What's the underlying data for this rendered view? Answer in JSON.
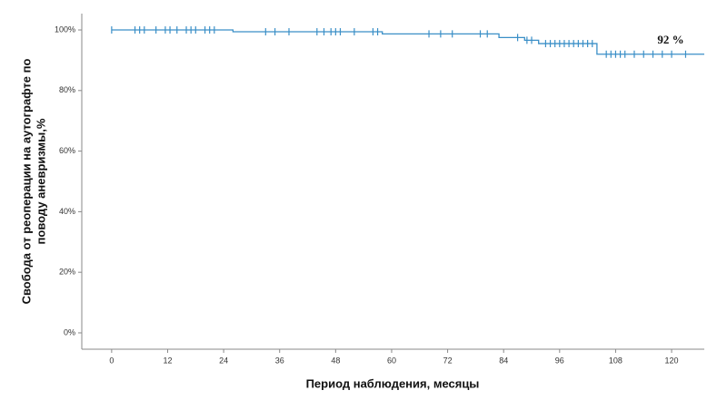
{
  "chart_data": {
    "type": "step",
    "xlabel": "Период наблюдения, месяцы",
    "ylabel": [
      "Свобода от реоперации на аутографте по",
      "поводу аневризмы,%"
    ],
    "annotation": "92 %",
    "color": "#3a8fc7",
    "x": [
      0,
      26,
      58,
      83,
      88.5,
      91.5,
      104,
      127
    ],
    "values": [
      100,
      99.4,
      98.7,
      97.5,
      96.6,
      95.5,
      92,
      92
    ],
    "censored_x": [
      0,
      5,
      6,
      7,
      9.5,
      11.5,
      12.5,
      14,
      16,
      17,
      18,
      20,
      21,
      22,
      33,
      35,
      38,
      44,
      45.5,
      47,
      48,
      49,
      52,
      56,
      57,
      68,
      70.5,
      73,
      79,
      80.5,
      87,
      89,
      90,
      93,
      94,
      95,
      96,
      97,
      98,
      99,
      100,
      101,
      102,
      103,
      106,
      107,
      108,
      109,
      110,
      112,
      114,
      116,
      118,
      120,
      123
    ],
    "censored_values": [
      100,
      100,
      100,
      100,
      100,
      100,
      100,
      100,
      100,
      100,
      100,
      100,
      100,
      100,
      99.4,
      99.4,
      99.4,
      99.4,
      99.4,
      99.4,
      99.4,
      99.4,
      99.4,
      99.4,
      99.4,
      98.7,
      98.7,
      98.7,
      98.7,
      98.7,
      97.5,
      96.6,
      96.6,
      95.5,
      95.5,
      95.5,
      95.5,
      95.5,
      95.5,
      95.5,
      95.5,
      95.5,
      95.5,
      95.5,
      92,
      92,
      92,
      92,
      92,
      92,
      92,
      92,
      92,
      92,
      92
    ],
    "xlim": [
      -6.4,
      127
    ],
    "ylim": [
      -5.4,
      105.4
    ],
    "xticks": [
      0,
      12,
      24,
      36,
      48,
      60,
      72,
      84,
      96,
      108,
      120
    ],
    "yticks": [
      {
        "value": 0,
        "label": "0%"
      },
      {
        "value": 20,
        "label": "20%"
      },
      {
        "value": 40,
        "label": "40%"
      },
      {
        "value": 60,
        "label": "60%"
      },
      {
        "value": 80,
        "label": "80%"
      },
      {
        "value": 100,
        "label": "100%"
      }
    ]
  }
}
